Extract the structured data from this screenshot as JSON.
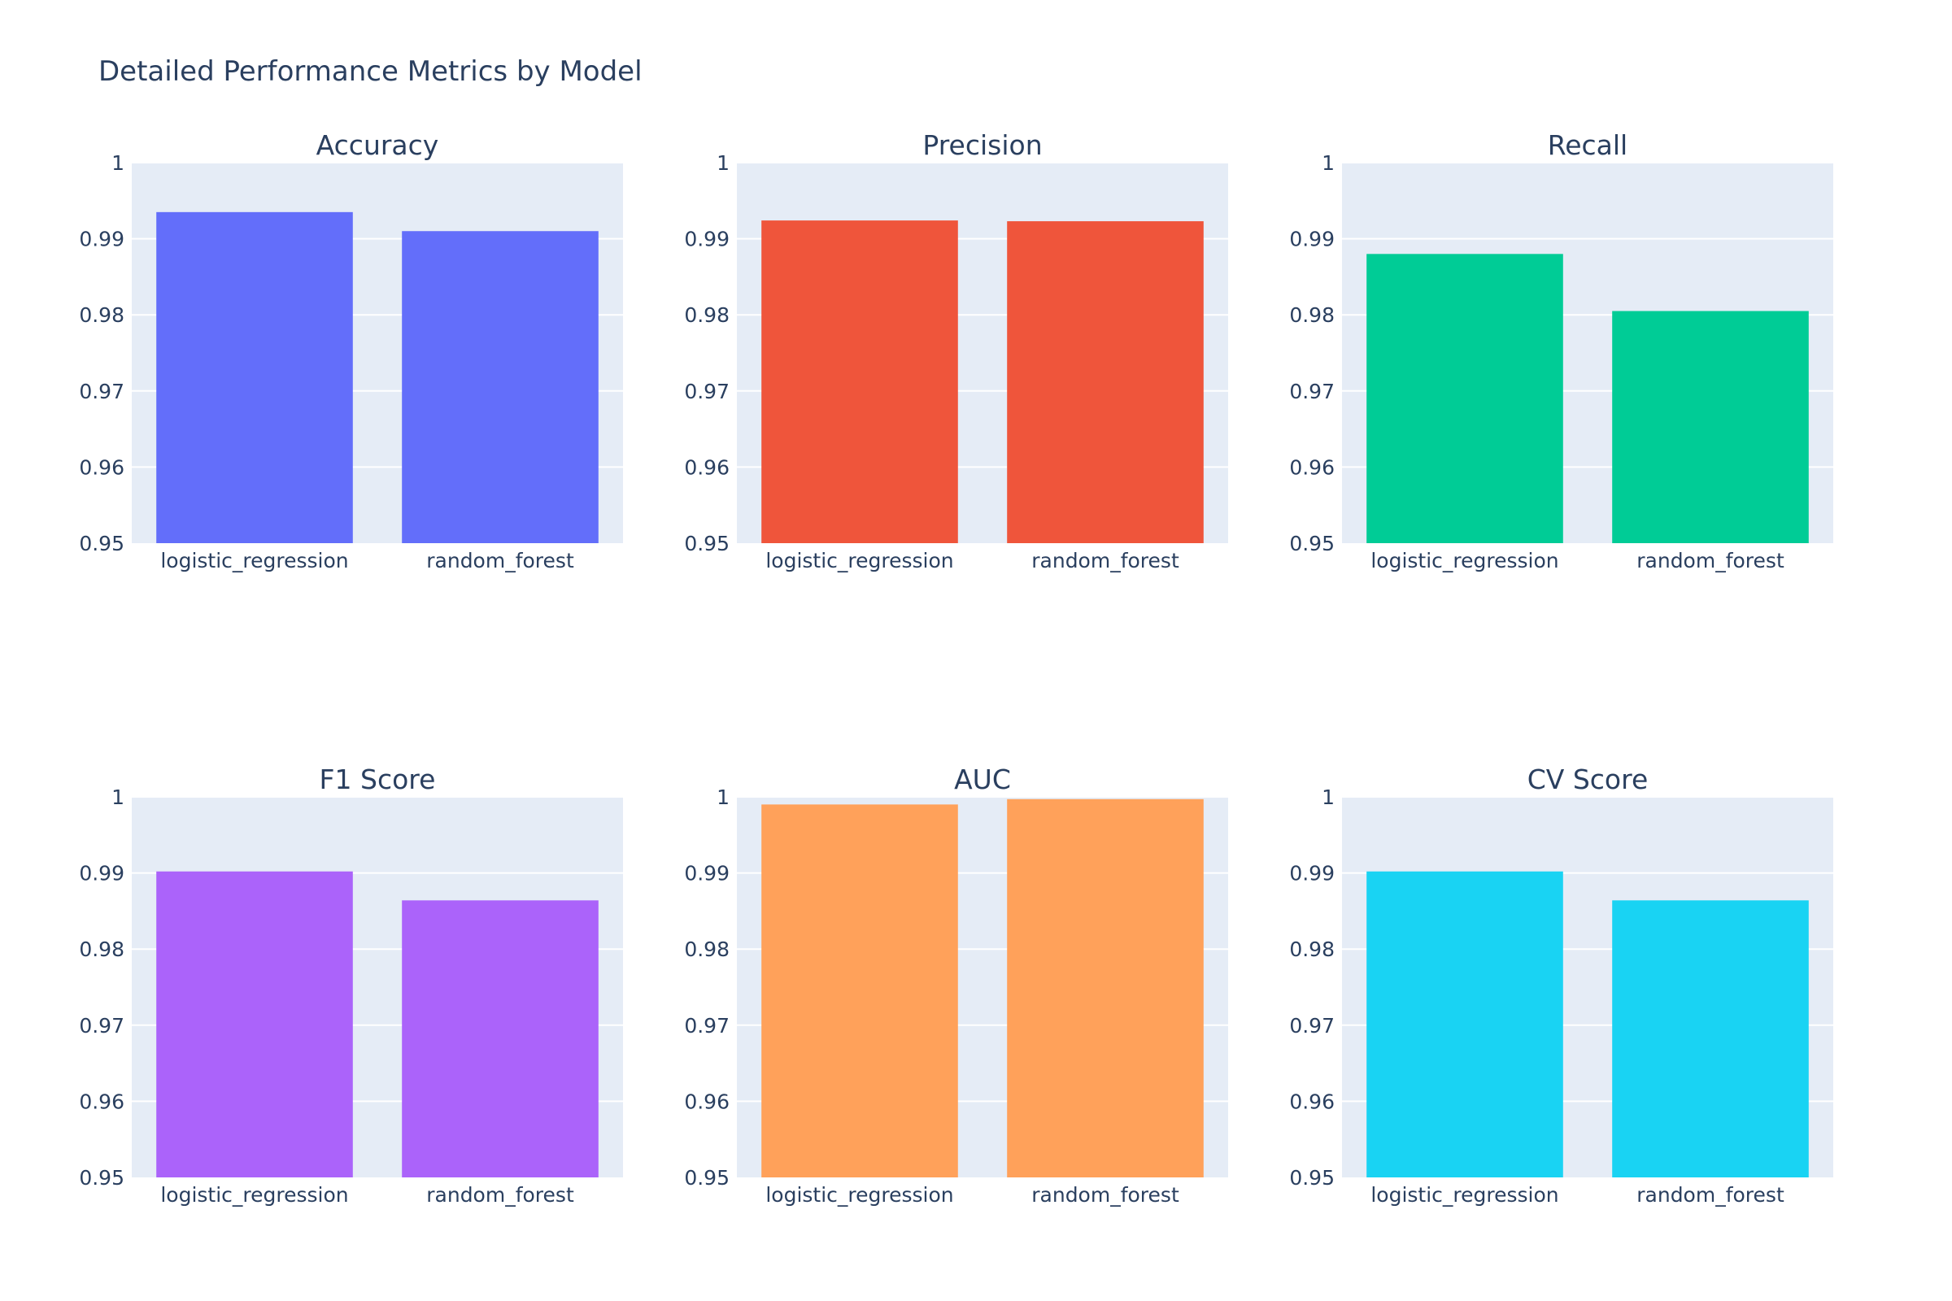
{
  "chart_data": {
    "type": "bar",
    "title": "Detailed Performance Metrics by Model",
    "categories": [
      "logistic_regression",
      "random_forest"
    ],
    "ylim": [
      0.95,
      1.0
    ],
    "yticks": [
      0.95,
      0.96,
      0.97,
      0.98,
      0.99,
      1
    ],
    "ytick_labels": [
      "0.95",
      "0.96",
      "0.97",
      "0.98",
      "0.99",
      "1"
    ],
    "grid": true,
    "legend": "none",
    "subplots": [
      {
        "title": "Accuracy",
        "color": "#636efa",
        "values": [
          0.9935,
          0.991
        ]
      },
      {
        "title": "Precision",
        "color": "#ef553b",
        "values": [
          0.9924,
          0.9923
        ]
      },
      {
        "title": "Recall",
        "color": "#00cc96",
        "values": [
          0.988,
          0.9805
        ]
      },
      {
        "title": "F1 Score",
        "color": "#ab63fa",
        "values": [
          0.9902,
          0.9864
        ]
      },
      {
        "title": "AUC",
        "color": "#ffa15a",
        "values": [
          0.999,
          0.9997
        ]
      },
      {
        "title": "CV Score",
        "color": "#19d3f3",
        "values": [
          0.9902,
          0.9864
        ]
      }
    ]
  }
}
